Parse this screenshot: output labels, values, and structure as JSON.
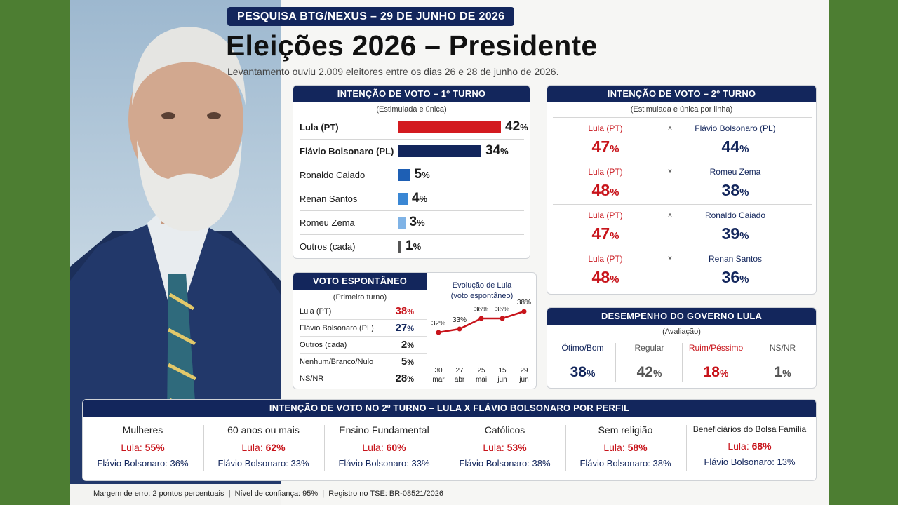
{
  "header": {
    "tag": "PESQUISA BTG/NEXUS – 29 DE JUNHO DE 2026",
    "title": "Eleições 2026 – Presidente",
    "subtitle": "Levantamento ouviu 2.009 eleitores entre os dias 26 e 28 de junho de 2026."
  },
  "colors": {
    "navy": "#13265c",
    "red": "#c8141b",
    "background": "#4d7e32"
  },
  "first_round": {
    "heading": "INTENÇÃO DE VOTO – 1º TURNO",
    "note": "(Estimulada e única)",
    "unit": "%",
    "rows": [
      {
        "name": "Lula (PT)",
        "value": "42",
        "color": "#d31a1f"
      },
      {
        "name": "Flávio Bolsonaro (PL)",
        "value": "34",
        "color": "#13265c"
      },
      {
        "name": "Ronaldo Caiado",
        "value": "5",
        "color": "#1e5fb4"
      },
      {
        "name": "Renan Santos",
        "value": "4",
        "color": "#3a87d4"
      },
      {
        "name": "Romeu Zema",
        "value": "3",
        "color": "#7fb3e6"
      },
      {
        "name": "Outros (cada)",
        "value": "1",
        "color": "#555555"
      }
    ]
  },
  "second_round": {
    "heading": "INTENÇÃO DE VOTO – 2º TURNO",
    "note": "(Estimulada e única por linha)",
    "x": "x",
    "unit": "%",
    "matchups": [
      {
        "a": "Lula (PT)",
        "a_val": "47",
        "b": "Flávio Bolsonaro (PL)",
        "b_val": "44"
      },
      {
        "a": "Lula (PT)",
        "a_val": "48",
        "b": "Romeu Zema",
        "b_val": "38"
      },
      {
        "a": "Lula (PT)",
        "a_val": "47",
        "b": "Ronaldo Caiado",
        "b_val": "39"
      },
      {
        "a": "Lula (PT)",
        "a_val": "48",
        "b": "Renan Santos",
        "b_val": "36"
      }
    ]
  },
  "spontaneous": {
    "heading": "VOTO ESPONTÂNEO",
    "note": "(Primeiro turno)",
    "unit": "%",
    "rows": [
      {
        "name": "Lula (PT)",
        "value": "38"
      },
      {
        "name": "Flávio Bolsonaro (PL)",
        "value": "27"
      },
      {
        "name": "Outros (cada)",
        "value": "2"
      },
      {
        "name": "Nenhum/Branco/Nulo",
        "value": "5"
      },
      {
        "name": "NS/NR",
        "value": "28"
      }
    ]
  },
  "chart_data": {
    "type": "line",
    "title": "Evolução de Lula",
    "subtitle": "(voto espontâneo)",
    "x": [
      [
        "30",
        "mar"
      ],
      [
        "27",
        "abr"
      ],
      [
        "25",
        "mai"
      ],
      [
        "15",
        "jun"
      ],
      [
        "29",
        "jun"
      ]
    ],
    "series": [
      {
        "name": "Lula",
        "values": [
          32,
          33,
          36,
          36,
          38
        ]
      }
    ],
    "ylim": [
      30,
      40
    ],
    "unit": "%",
    "color": "#c8141b"
  },
  "government": {
    "heading": "DESEMPENHO DO GOVERNO LULA",
    "note": "(Avaliação)",
    "unit": "%",
    "items": [
      {
        "label": "Ótimo/Bom",
        "value": "38",
        "color": "#13265c"
      },
      {
        "label": "Regular",
        "value": "42",
        "color": "#555555"
      },
      {
        "label": "Ruim/Péssimo",
        "value": "18",
        "color": "#c8141b"
      },
      {
        "label": "NS/NR",
        "value": "1",
        "color": "#555555"
      }
    ]
  },
  "profiles": {
    "heading": "INTENÇÃO DE VOTO NO 2º TURNO – LULA X FLÁVIO BOLSONARO POR PERFIL",
    "a_label": "Lula:",
    "b_label": "Flávio Bolsonaro:",
    "unit": "%",
    "items": [
      {
        "group": "Mulheres",
        "a": "55",
        "b": "36"
      },
      {
        "group": "60 anos ou mais",
        "a": "62",
        "b": "33"
      },
      {
        "group": "Ensino Fundamental",
        "a": "60",
        "b": "33"
      },
      {
        "group": "Católicos",
        "a": "53",
        "b": "38"
      },
      {
        "group": "Sem religião",
        "a": "58",
        "b": "38"
      },
      {
        "group": "Beneficiários do Bolsa Família",
        "a": "68",
        "b": "13"
      }
    ]
  },
  "footer": "Margem de erro: 2 pontos percentuais  |  Nível de confiança: 95%  |  Registro no TSE: BR-08521/2026"
}
